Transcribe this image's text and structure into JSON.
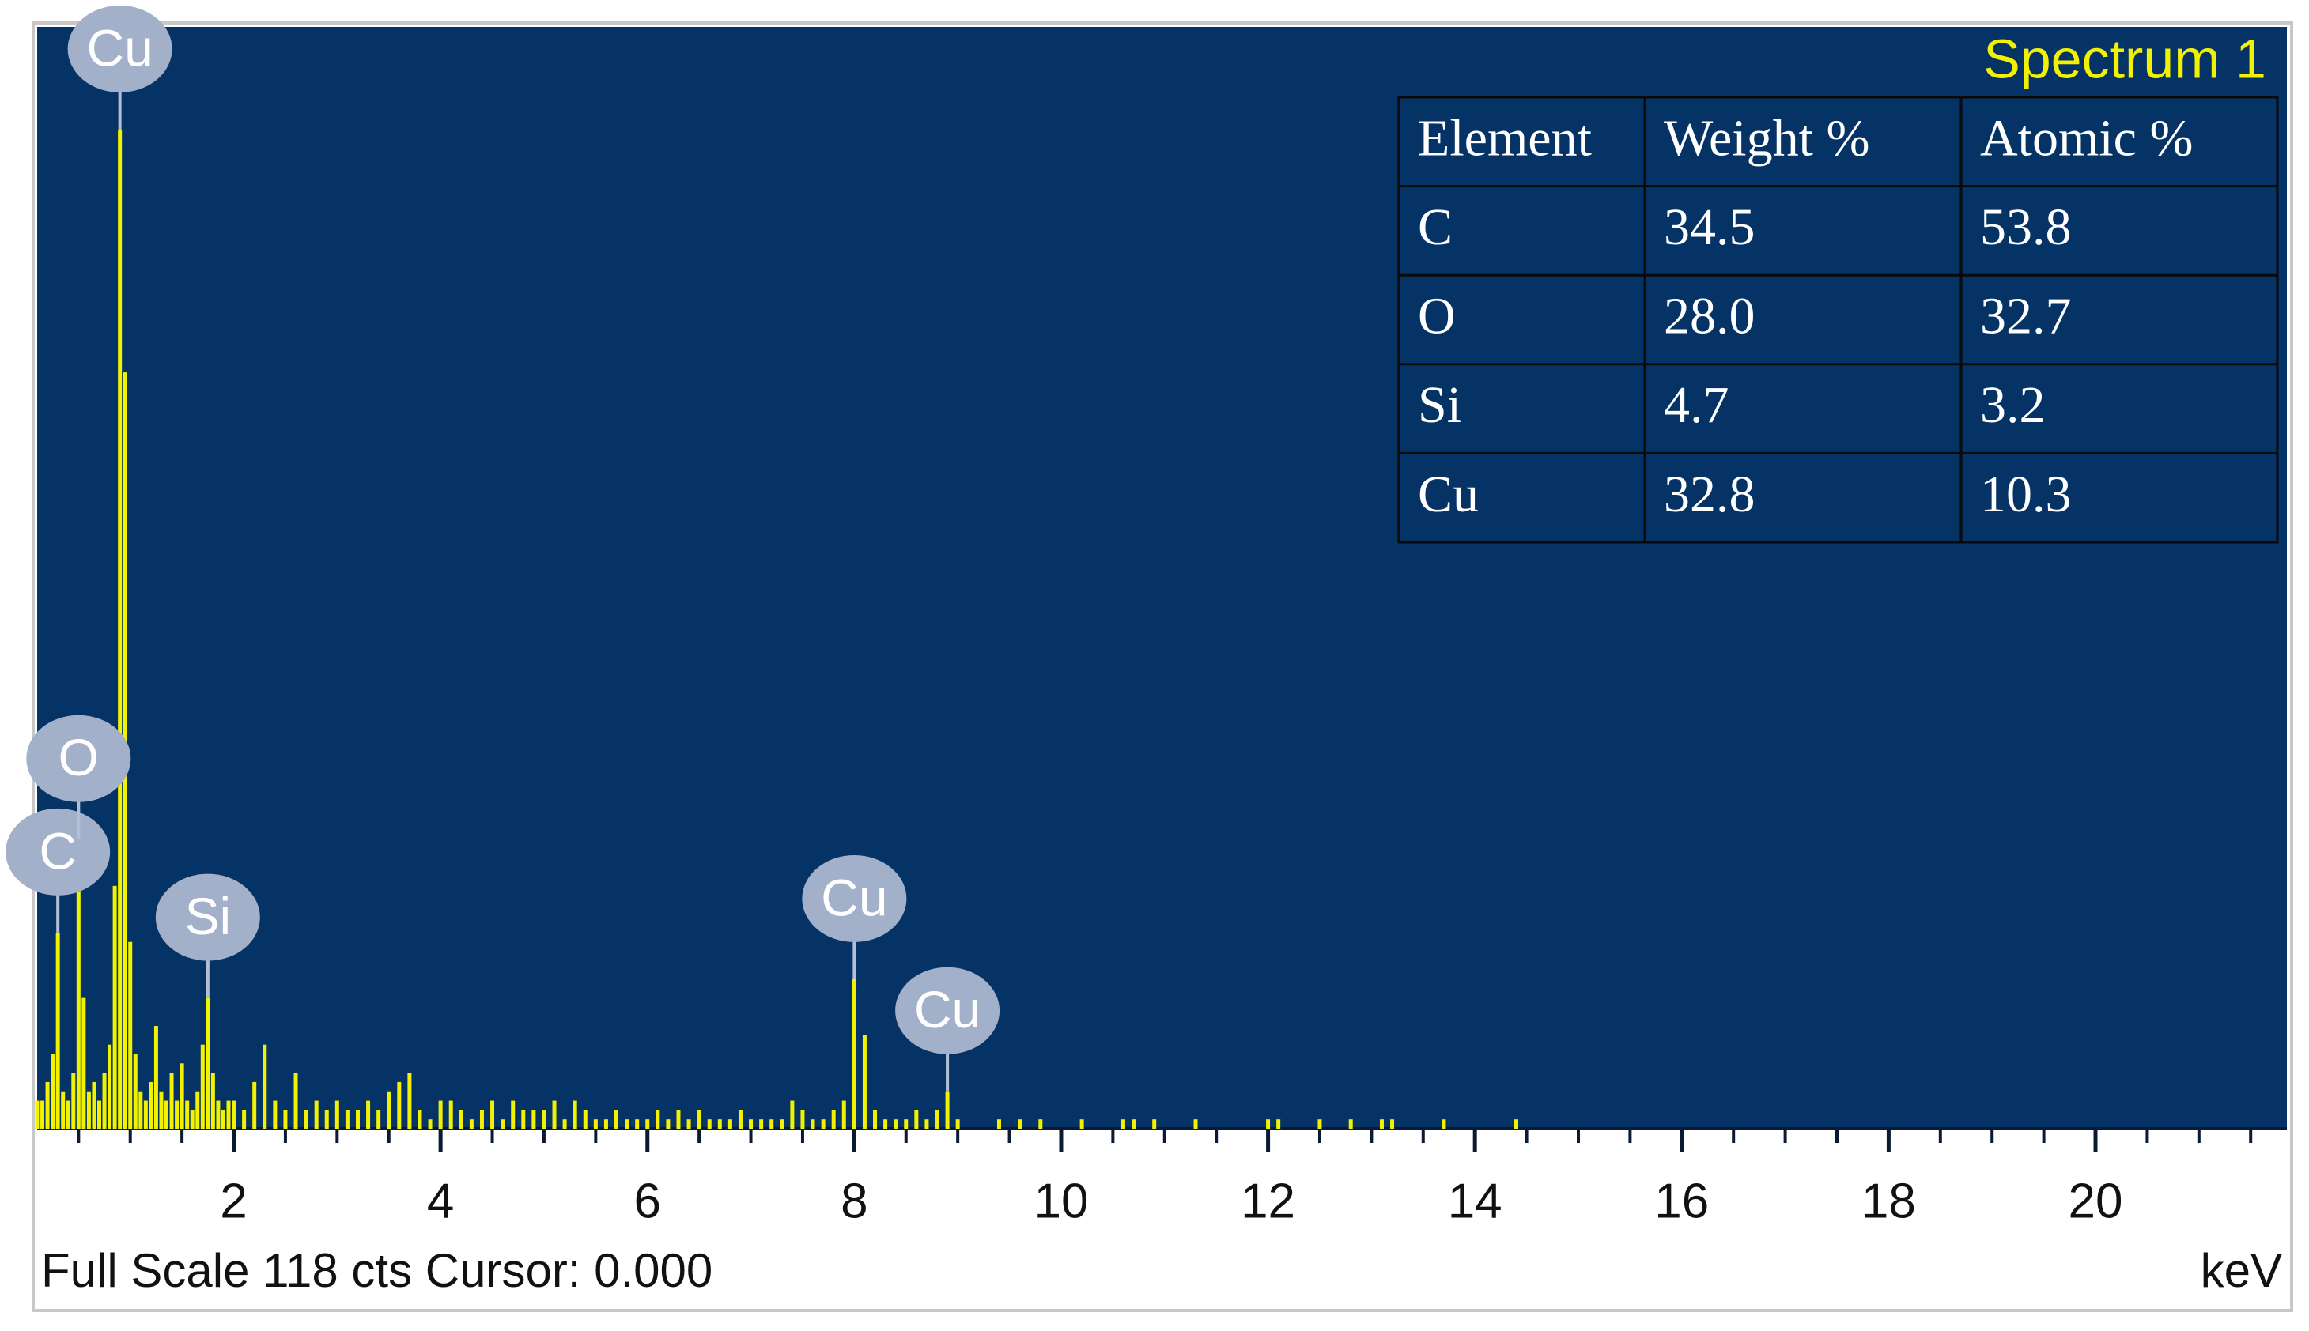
{
  "chart_data": {
    "type": "bar",
    "title": "Spectrum 1",
    "x": [
      0.1,
      0.15,
      0.2,
      0.25,
      0.3,
      0.35,
      0.4,
      0.45,
      0.5,
      0.55,
      0.6,
      0.65,
      0.7,
      0.75,
      0.8,
      0.85,
      0.9,
      0.95,
      1.0,
      1.05,
      1.1,
      1.15,
      1.2,
      1.25,
      1.3,
      1.35,
      1.4,
      1.45,
      1.5,
      1.55,
      1.6,
      1.65,
      1.7,
      1.75,
      1.8,
      1.85,
      1.9,
      1.95,
      2.0,
      2.1,
      2.2,
      2.3,
      2.4,
      2.5,
      2.6,
      2.7,
      2.8,
      2.9,
      3.0,
      3.1,
      3.2,
      3.3,
      3.4,
      3.5,
      3.6,
      3.7,
      3.8,
      3.9,
      4.0,
      4.1,
      4.2,
      4.3,
      4.4,
      4.5,
      4.6,
      4.7,
      4.8,
      4.9,
      5.0,
      5.1,
      5.2,
      5.3,
      5.4,
      5.5,
      5.6,
      5.7,
      5.8,
      5.9,
      6.0,
      6.1,
      6.2,
      6.3,
      6.4,
      6.5,
      6.6,
      6.7,
      6.8,
      6.9,
      7.0,
      7.1,
      7.2,
      7.3,
      7.4,
      7.5,
      7.6,
      7.7,
      7.8,
      7.9,
      8.0,
      8.1,
      8.2,
      8.3,
      8.4,
      8.5,
      8.6,
      8.7,
      8.8,
      8.9,
      9.0,
      9.4,
      9.6,
      9.8,
      10.2,
      10.6,
      10.7,
      10.9,
      11.3,
      12.0,
      12.1,
      12.5,
      12.8,
      13.1,
      13.2,
      13.7,
      14.4
    ],
    "values": [
      3,
      3,
      5,
      8,
      21,
      4,
      3,
      6,
      31,
      14,
      4,
      5,
      3,
      6,
      9,
      26,
      107,
      81,
      20,
      8,
      4,
      3,
      5,
      11,
      4,
      3,
      6,
      3,
      7,
      3,
      2,
      4,
      9,
      14,
      6,
      3,
      2,
      3,
      3,
      2,
      5,
      9,
      3,
      2,
      6,
      2,
      3,
      2,
      3,
      2,
      2,
      3,
      2,
      4,
      5,
      6,
      2,
      1,
      3,
      3,
      2,
      1,
      2,
      3,
      1,
      3,
      2,
      2,
      2,
      3,
      1,
      3,
      2,
      1,
      1,
      2,
      1,
      1,
      1,
      2,
      1,
      2,
      1,
      2,
      1,
      1,
      1,
      2,
      1,
      1,
      1,
      1,
      3,
      2,
      1,
      1,
      2,
      3,
      16,
      10,
      2,
      1,
      1,
      1,
      2,
      1,
      2,
      4,
      1,
      1,
      1,
      1,
      1,
      1,
      1,
      1,
      1,
      1,
      1,
      1,
      1,
      1,
      1,
      1,
      1
    ],
    "color": "#f2f200",
    "xlim": [
      0.1,
      21.85
    ],
    "ylim": [
      0,
      118
    ],
    "xticks": [
      2,
      4,
      6,
      8,
      10,
      12,
      14,
      16,
      18,
      20
    ],
    "xminorticks": [
      0.5,
      1,
      1.5,
      2.5,
      3,
      3.5,
      4.5,
      5,
      5.5,
      6.5,
      7,
      7.5,
      8.5,
      9,
      9.5,
      10.5,
      11,
      11.5,
      12.5,
      13,
      13.5,
      14.5,
      15,
      15.5,
      16.5,
      17,
      17.5,
      18.5,
      19,
      19.5,
      20.5,
      21,
      21.5
    ],
    "x_label": "keV",
    "footer": "Full Scale 118 cts Cursor: 0.000",
    "peak_labels": [
      {
        "label": "C",
        "x": 0.3
      },
      {
        "label": "O",
        "x": 0.5
      },
      {
        "label": "Cu",
        "x": 0.9
      },
      {
        "label": "Si",
        "x": 1.75
      },
      {
        "label": "Cu",
        "x": 8.0
      },
      {
        "label": "Cu",
        "x": 8.9
      }
    ],
    "table": {
      "columns": [
        "Element",
        "Weight %",
        "Atomic %"
      ],
      "rows": [
        [
          "C",
          "34.5",
          "53.8"
        ],
        [
          "O",
          "28.0",
          "32.7"
        ],
        [
          "Si",
          "4.7",
          "3.2"
        ],
        [
          "Cu",
          "32.8",
          "10.3"
        ]
      ]
    }
  }
}
